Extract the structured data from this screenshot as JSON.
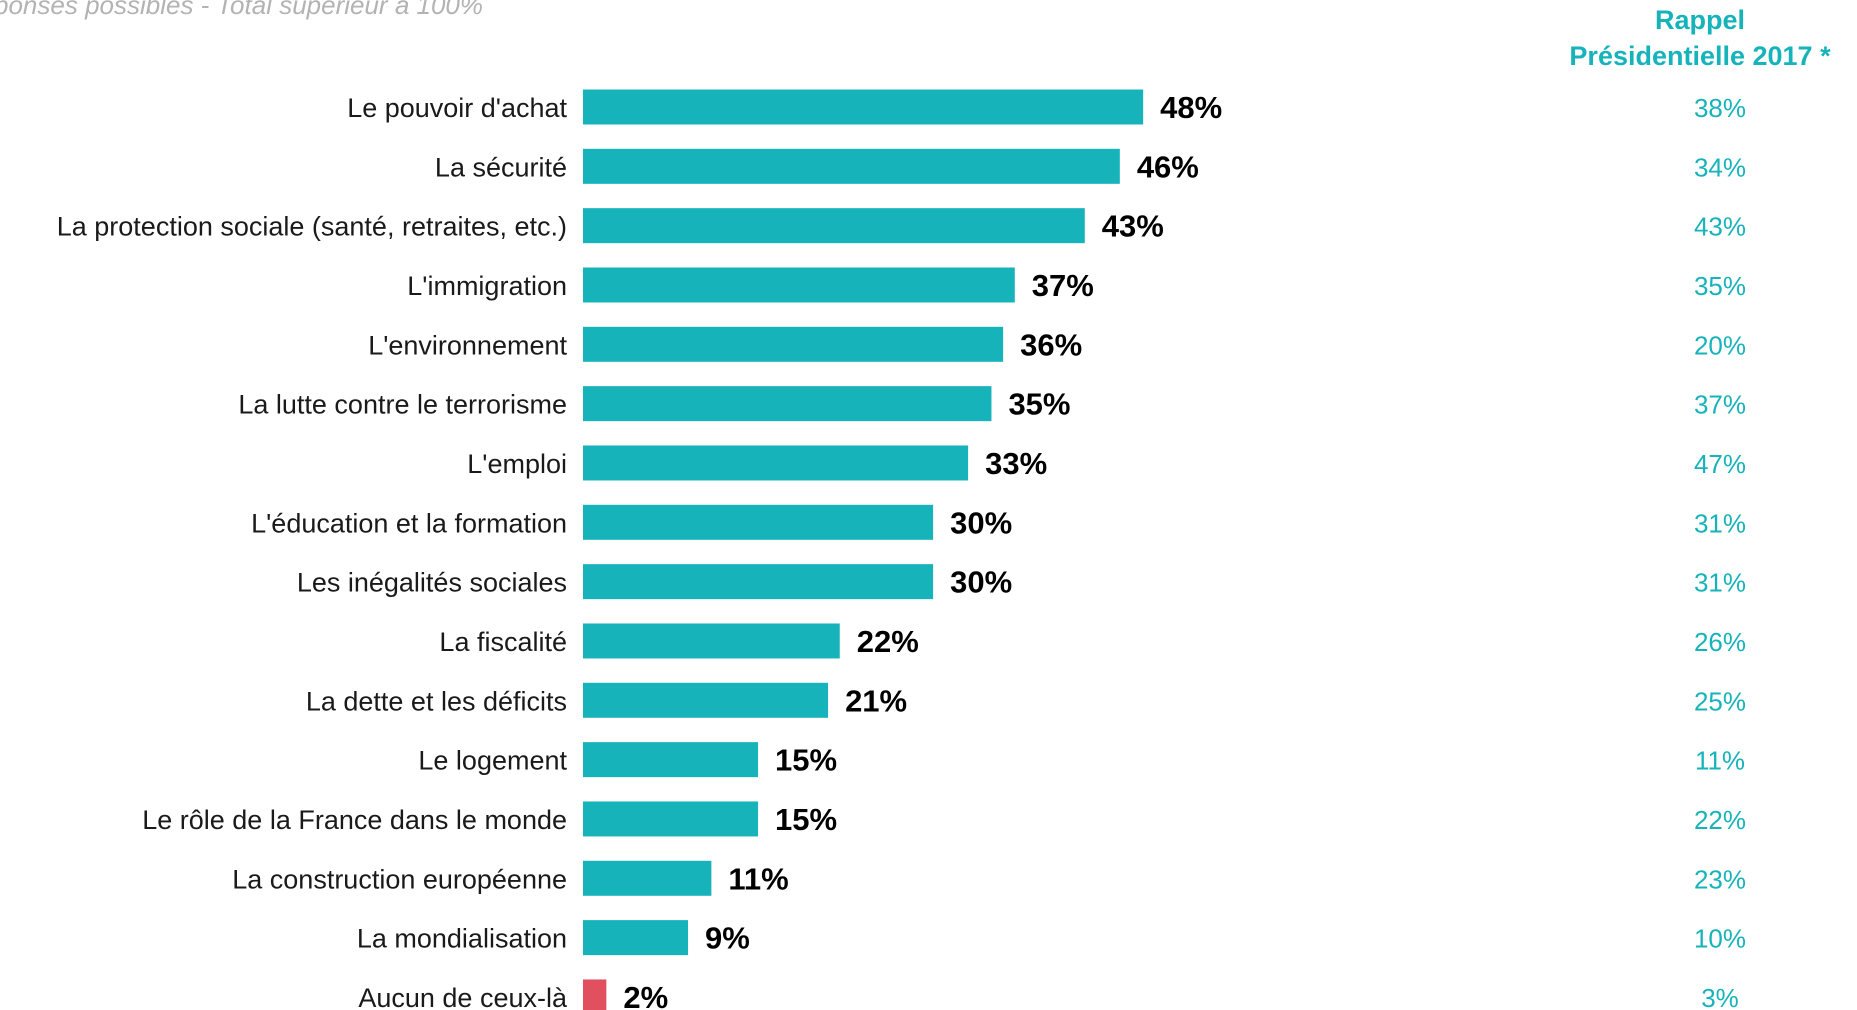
{
  "header": {
    "note": "ponses possibles - Total supérieur à 100%",
    "rappel_line1": "Rappel",
    "rappel_line2": "Présidentielle 2017 *"
  },
  "colors": {
    "bar": "#17b3bb",
    "highlight": "#e0505e",
    "reference_text": "#17b3bb"
  },
  "chart_data": {
    "type": "bar",
    "orientation": "horizontal",
    "title": "",
    "xlabel": "",
    "ylabel": "",
    "xlim": [
      0,
      50
    ],
    "grid": false,
    "categories": [
      "Le pouvoir d'achat",
      "La sécurité",
      "La protection sociale (santé, retraites, etc.)",
      "L'immigration",
      "L'environnement",
      "La lutte contre le terrorisme",
      "L'emploi",
      "L'éducation et la formation",
      "Les inégalités sociales",
      "La fiscalité",
      "La dette et les déficits",
      "Le logement",
      "Le rôle de la France dans le monde",
      "La construction européenne",
      "La mondialisation",
      "Aucun de ceux-là"
    ],
    "values": [
      48,
      46,
      43,
      37,
      36,
      35,
      33,
      30,
      30,
      22,
      21,
      15,
      15,
      11,
      9,
      2
    ],
    "value_labels": [
      "48%",
      "46%",
      "43%",
      "37%",
      "36%",
      "35%",
      "33%",
      "30%",
      "30%",
      "22%",
      "21%",
      "15%",
      "15%",
      "11%",
      "9%",
      "2%"
    ],
    "highlight_categories": [
      "Aucun de ceux-là"
    ],
    "reference_column": {
      "values": [
        38,
        34,
        43,
        35,
        20,
        37,
        47,
        31,
        31,
        26,
        25,
        11,
        22,
        23,
        10,
        3
      ],
      "labels": [
        "38%",
        "34%",
        "43%",
        "35%",
        "20%",
        "37%",
        "47%",
        "31%",
        "31%",
        "26%",
        "25%",
        "11%",
        "22%",
        "23%",
        "10%",
        "3%"
      ]
    }
  }
}
